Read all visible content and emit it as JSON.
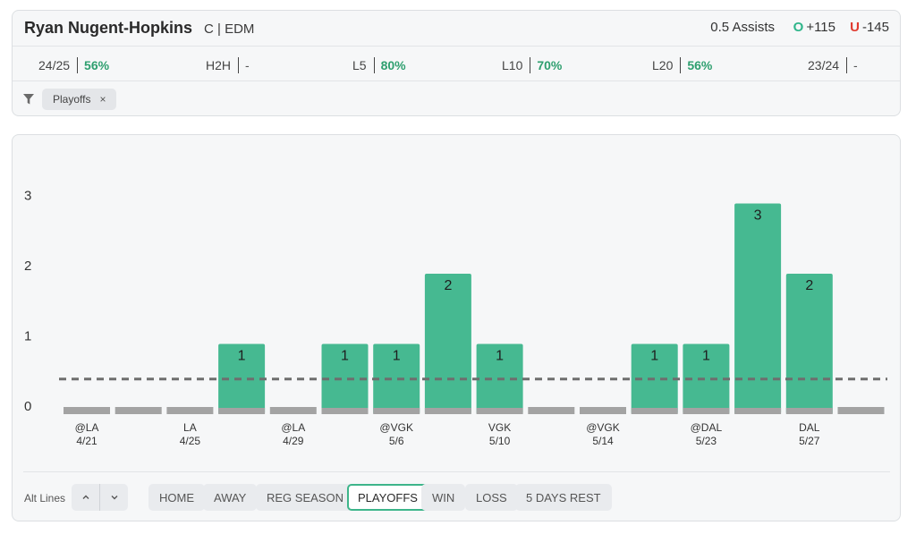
{
  "header": {
    "player_name": "Ryan Nugent-Hopkins",
    "player_meta": "C | EDM",
    "prop": "0.5 Assists",
    "over_letter": "O",
    "over_odds": "+115",
    "under_letter": "U",
    "under_odds": "-145"
  },
  "stats": [
    {
      "label": "24/25",
      "value": "56%"
    },
    {
      "label": "H2H",
      "value": "-"
    },
    {
      "label": "L5",
      "value": "80%"
    },
    {
      "label": "L10",
      "value": "70%"
    },
    {
      "label": "L20",
      "value": "56%"
    },
    {
      "label": "23/24",
      "value": "-"
    }
  ],
  "filter": {
    "icon": "filter-icon",
    "chip_label": "Playoffs",
    "chip_close": "×"
  },
  "colors": {
    "hit": "#46b991",
    "miss": "#a3a3a3",
    "accent_text": "#2e9f6f",
    "line": "#6e6e6e"
  },
  "chart_data": {
    "type": "bar",
    "ylim": [
      0,
      3
    ],
    "yticks": [
      0,
      1,
      2,
      3
    ],
    "line_value": 0.5,
    "values": [
      0,
      0,
      0,
      1,
      0,
      1,
      1,
      2,
      1,
      0,
      0,
      1,
      1,
      3,
      2,
      0
    ],
    "tick_labels": [
      {
        "index": 0,
        "opp": "@LA",
        "date": "4/21"
      },
      {
        "index": 2,
        "opp": "LA",
        "date": "4/25"
      },
      {
        "index": 4,
        "opp": "@LA",
        "date": "4/29"
      },
      {
        "index": 6,
        "opp": "@VGK",
        "date": "5/6"
      },
      {
        "index": 8,
        "opp": "VGK",
        "date": "5/10"
      },
      {
        "index": 10,
        "opp": "@VGK",
        "date": "5/14"
      },
      {
        "index": 12,
        "opp": "@DAL",
        "date": "5/23"
      },
      {
        "index": 14,
        "opp": "DAL",
        "date": "5/27"
      }
    ]
  },
  "footer": {
    "alt_lines_label": "Alt Lines",
    "buttons": [
      {
        "label": "HOME",
        "active": false
      },
      {
        "label": "AWAY",
        "active": false
      },
      {
        "label": "REG SEASON",
        "active": false
      },
      {
        "label": "PLAYOFFS",
        "active": true
      },
      {
        "label": "WIN",
        "active": false
      },
      {
        "label": "LOSS",
        "active": false
      },
      {
        "label": "5 DAYS REST",
        "active": false
      }
    ]
  }
}
